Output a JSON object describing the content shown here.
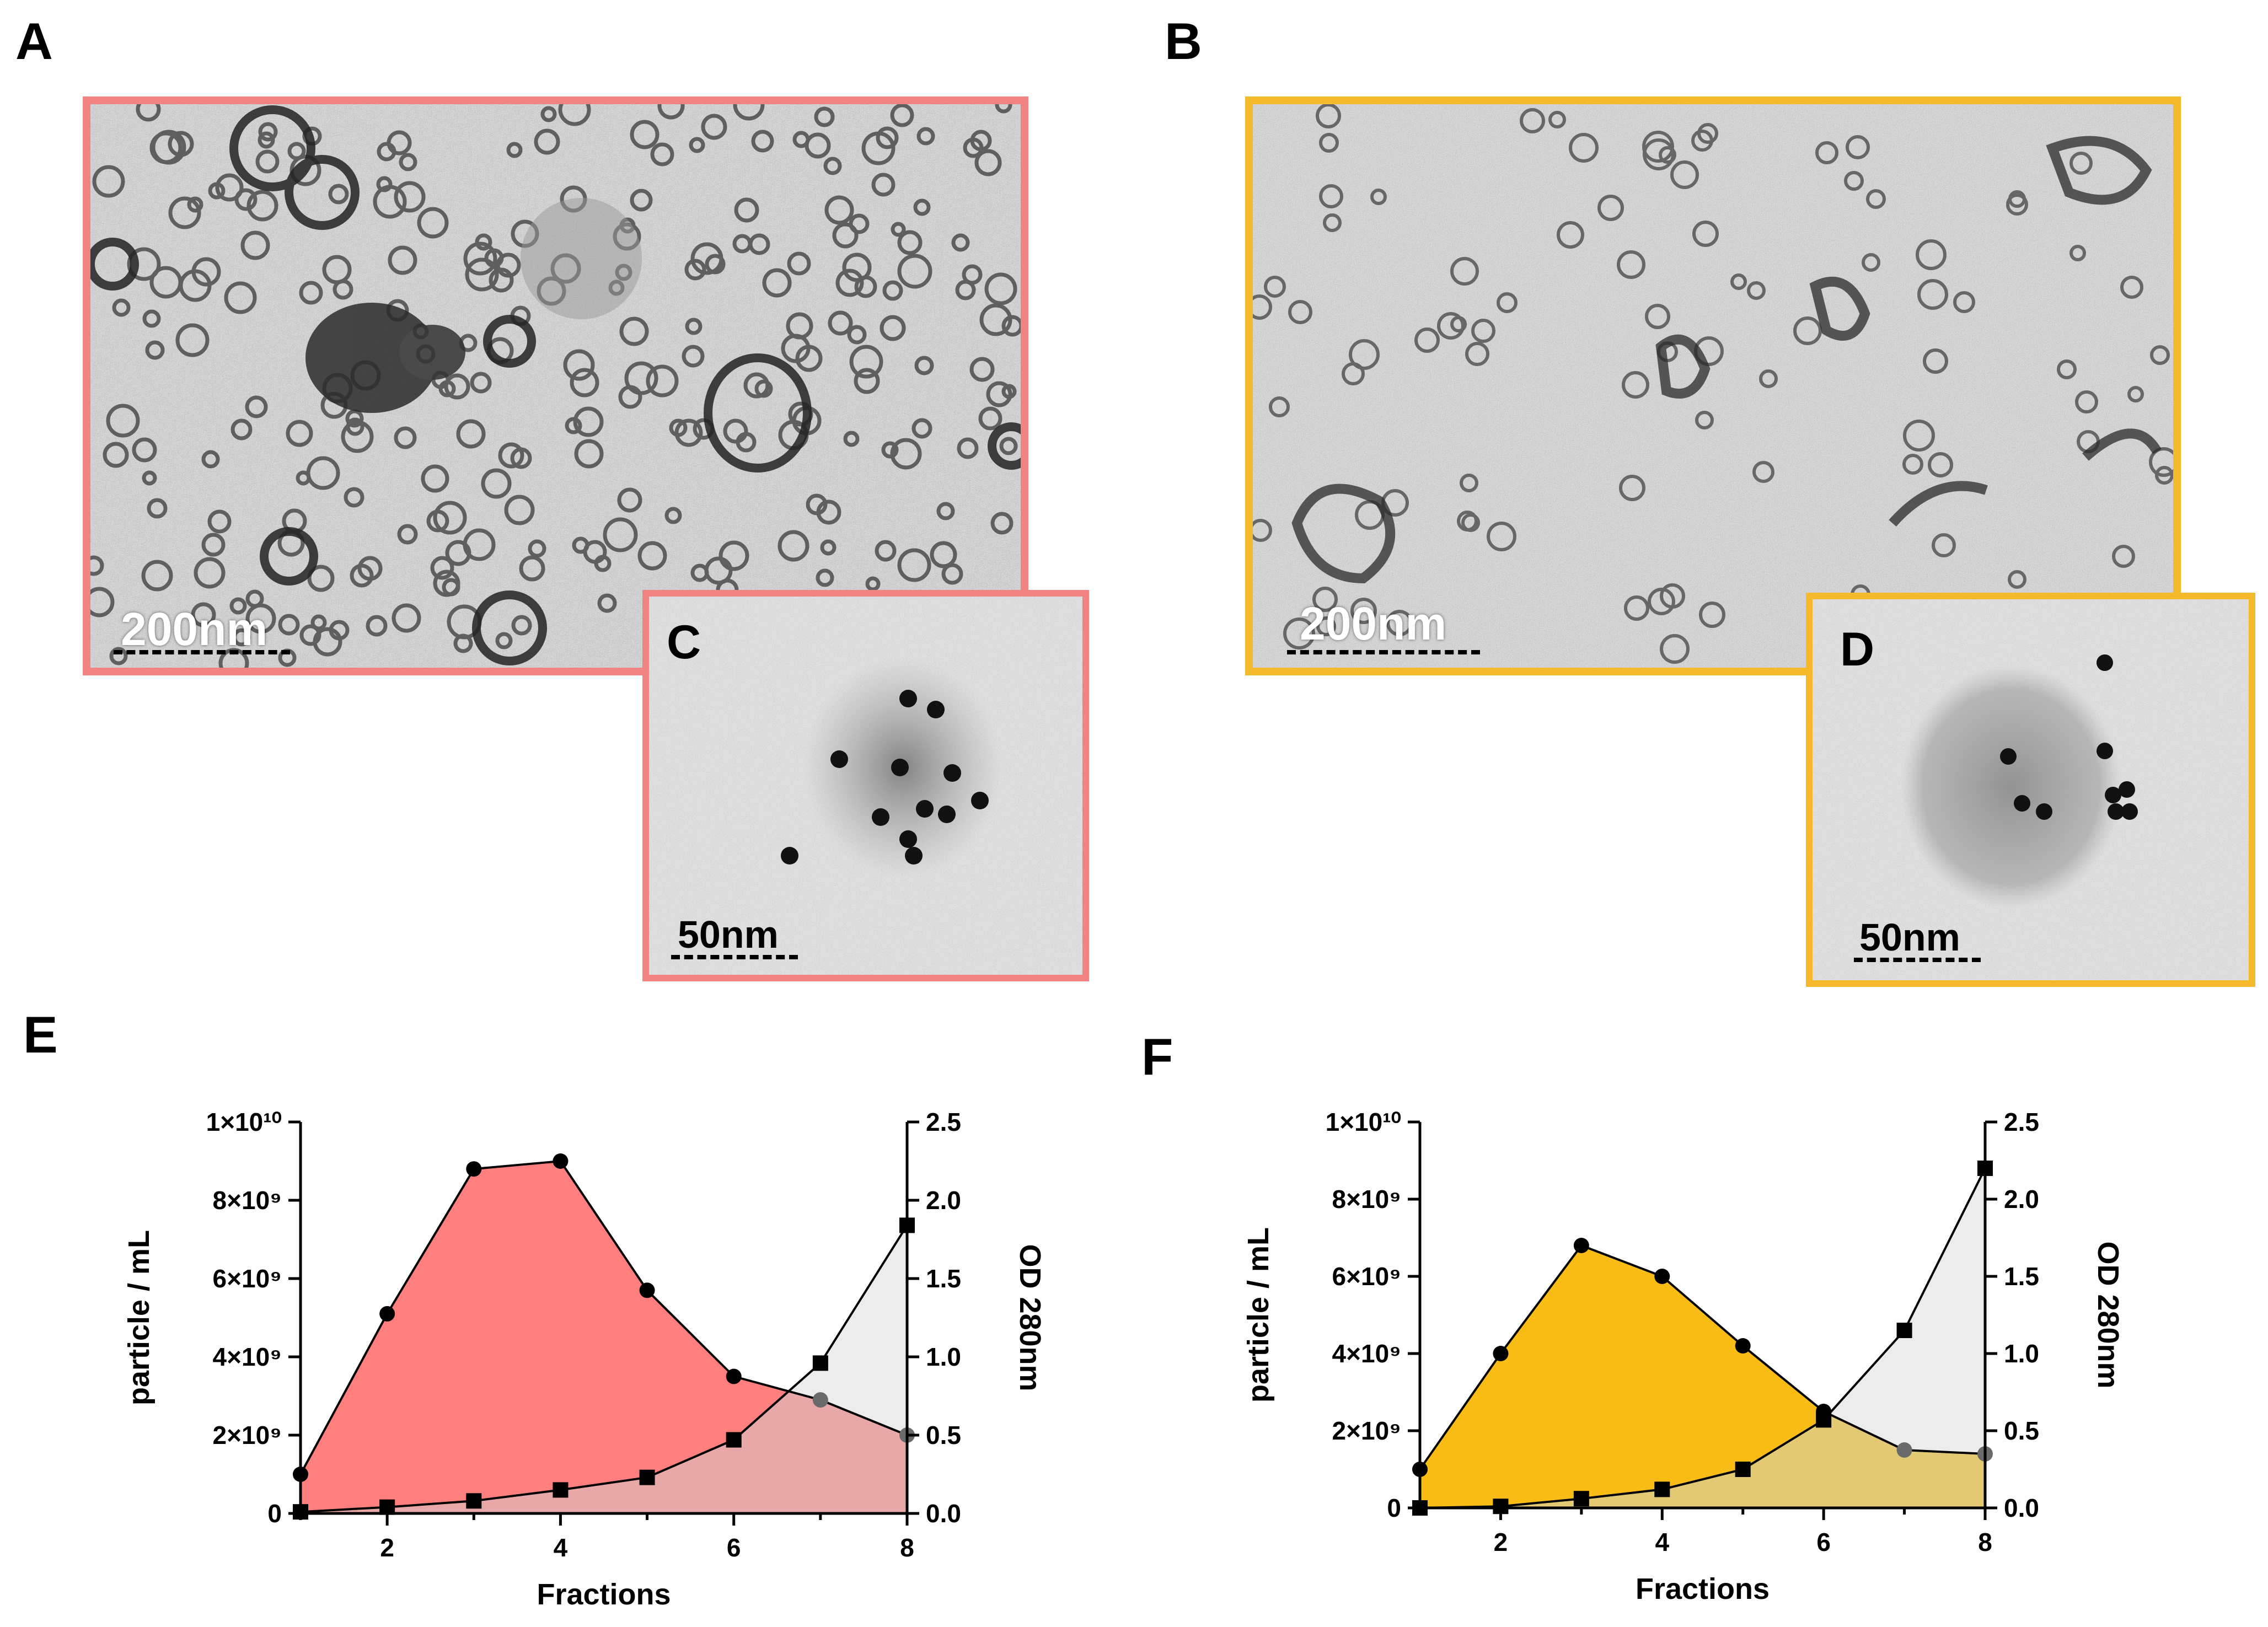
{
  "panel_labels": [
    "A",
    "B",
    "C",
    "D",
    "E",
    "F"
  ],
  "micrographs": {
    "A": {
      "scale_label": "200nm",
      "border_color": "#F28383"
    },
    "B": {
      "scale_label": "200nm",
      "border_color": "#F6B92B"
    },
    "C": {
      "scale_label": "50nm",
      "border_color": "#F28383"
    },
    "D": {
      "scale_label": "50nm",
      "border_color": "#F6B92B"
    }
  },
  "chart_data": [
    {
      "panel": "E",
      "type": "area",
      "xlabel": "Fractions",
      "ylabel": "particle / mL",
      "y2label": "OD 280nm",
      "xlim": [
        1,
        8
      ],
      "xticks": [
        2,
        4,
        6,
        8
      ],
      "ylim": [
        0,
        10000000000
      ],
      "yticks": [
        "0",
        "2×10⁹",
        "4×10⁹",
        "6×10⁹",
        "8×10⁹",
        "1×10¹⁰"
      ],
      "y2lim": [
        0,
        2.5
      ],
      "y2ticks": [
        "0.0",
        "0.5",
        "1.0",
        "1.5",
        "2.0",
        "2.5"
      ],
      "series": [
        {
          "axis": "left",
          "marker": "circle",
          "fill": "#FF7F7F",
          "x": [
            1,
            2,
            3,
            4,
            5,
            6,
            7,
            8
          ],
          "values": [
            1000000000,
            5100000000,
            8800000000,
            9000000000,
            5700000000,
            3500000000,
            2900000000,
            2000000000
          ]
        },
        {
          "axis": "right",
          "marker": "square",
          "fill": "#E6E6E6",
          "x": [
            1,
            2,
            3,
            4,
            5,
            6,
            7,
            8
          ],
          "values": [
            0.01,
            0.04,
            0.08,
            0.15,
            0.23,
            0.47,
            0.96,
            1.84
          ]
        }
      ]
    },
    {
      "panel": "F",
      "type": "area",
      "xlabel": "Fractions",
      "ylabel": "particle / mL",
      "y2label": "OD 280nm",
      "xlim": [
        1,
        8
      ],
      "xticks": [
        2,
        4,
        6,
        8
      ],
      "ylim": [
        0,
        10000000000
      ],
      "yticks": [
        "0",
        "2×10⁹",
        "4×10⁹",
        "6×10⁹",
        "8×10⁹",
        "1×10¹⁰"
      ],
      "y2lim": [
        0,
        2.5
      ],
      "y2ticks": [
        "0.0",
        "0.5",
        "1.0",
        "1.5",
        "2.0",
        "2.5"
      ],
      "series": [
        {
          "axis": "left",
          "marker": "circle",
          "fill": "#F8BC14",
          "x": [
            1,
            2,
            3,
            4,
            5,
            6,
            7,
            8
          ],
          "values": [
            1000000000,
            4000000000,
            6800000000,
            6000000000,
            4200000000,
            2500000000,
            1500000000,
            1400000000
          ]
        },
        {
          "axis": "right",
          "marker": "square",
          "fill": "#E6E6E6",
          "x": [
            1,
            2,
            3,
            4,
            5,
            6,
            7,
            8
          ],
          "values": [
            0.0,
            0.01,
            0.06,
            0.12,
            0.25,
            0.57,
            1.15,
            2.2
          ]
        }
      ]
    }
  ]
}
